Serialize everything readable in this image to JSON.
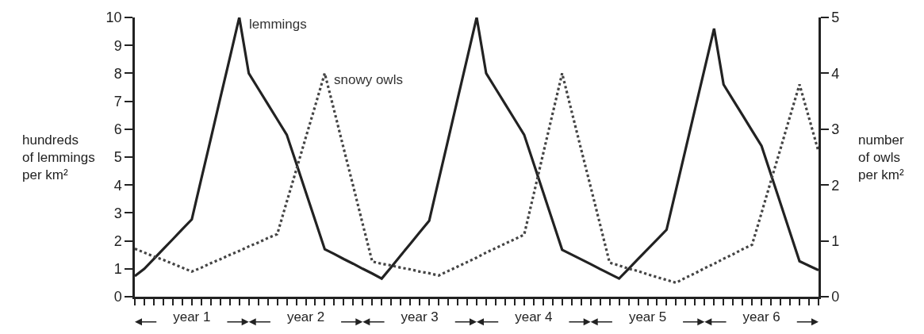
{
  "chart_data": {
    "type": "line",
    "ylabel": "hundreds\nof lemmings\nper km²",
    "y2label": "number\nof owls\nper km²",
    "categories": [
      null,
      null,
      null,
      null,
      null,
      null,
      "year 1",
      null,
      null,
      null,
      null,
      null,
      null,
      null,
      null,
      null,
      null,
      null,
      "year 2",
      null,
      null,
      null,
      null,
      null,
      null,
      null,
      null,
      null,
      null,
      null,
      "year 3",
      null,
      null,
      null,
      null,
      null,
      null,
      null,
      null,
      null,
      null,
      null,
      "year 4",
      null,
      null,
      null,
      null,
      null,
      null,
      null,
      null,
      null,
      null,
      null,
      "year 5",
      null,
      null,
      null,
      null,
      null,
      null,
      null,
      null,
      null,
      null,
      null,
      "year 6",
      null,
      null,
      null,
      null,
      null,
      null
    ],
    "series": [
      {
        "name": "lemmings",
        "color": "#222222",
        "line_style": "solid",
        "values": [
          0.74,
          1.0,
          1.35,
          1.71,
          2.06,
          2.42,
          2.77,
          4.22,
          5.66,
          7.11,
          8.55,
          10,
          8.0,
          7.45,
          6.9,
          6.35,
          5.8,
          4.78,
          3.75,
          2.73,
          1.7,
          1.53,
          1.35,
          1.18,
          1.0,
          0.83,
          0.65,
          1.06,
          1.48,
          1.89,
          2.31,
          2.72,
          4.18,
          5.63,
          7.09,
          8.54,
          10,
          8.0,
          7.45,
          6.9,
          6.35,
          5.8,
          4.77,
          3.74,
          2.71,
          1.68,
          1.51,
          1.34,
          1.17,
          0.99,
          0.82,
          0.65,
          1.0,
          1.35,
          1.7,
          2.05,
          2.4,
          3.84,
          5.28,
          6.72,
          8.16,
          9.6,
          7.6,
          7.05,
          6.5,
          5.95,
          5.4,
          4.37,
          3.34,
          2.3,
          1.27,
          1.11,
          0.95
        ]
      },
      {
        "name": "snowy owls",
        "color": "#444444",
        "line_style": "dotted",
        "axis": "y2",
        "values": [
          0.86,
          0.79,
          0.72,
          0.66,
          0.59,
          0.52,
          0.45,
          0.52,
          0.6,
          0.67,
          0.75,
          0.82,
          0.9,
          0.97,
          1.05,
          1.12,
          1.7,
          2.27,
          2.85,
          3.42,
          4.0,
          3.33,
          2.65,
          1.98,
          1.3,
          0.63,
          0.59,
          0.56,
          0.52,
          0.49,
          0.45,
          0.42,
          0.38,
          0.46,
          0.54,
          0.62,
          0.7,
          0.79,
          0.87,
          0.95,
          1.03,
          1.11,
          1.83,
          2.56,
          3.28,
          4.0,
          3.32,
          2.64,
          1.97,
          1.29,
          0.61,
          0.56,
          0.5,
          0.46,
          0.4,
          0.35,
          0.3,
          0.25,
          0.34,
          0.42,
          0.51,
          0.59,
          0.68,
          0.76,
          0.85,
          0.93,
          1.5,
          2.08,
          2.65,
          3.23,
          3.8,
          3.2,
          2.6
        ]
      }
    ],
    "ylim": [
      0,
      10
    ],
    "yticks": [
      0,
      1,
      2,
      3,
      4,
      5,
      6,
      7,
      8,
      9,
      10
    ],
    "y2lim": [
      0,
      5
    ],
    "y2ticks": [
      0,
      1,
      2,
      3,
      4,
      5
    ],
    "legend": false
  }
}
